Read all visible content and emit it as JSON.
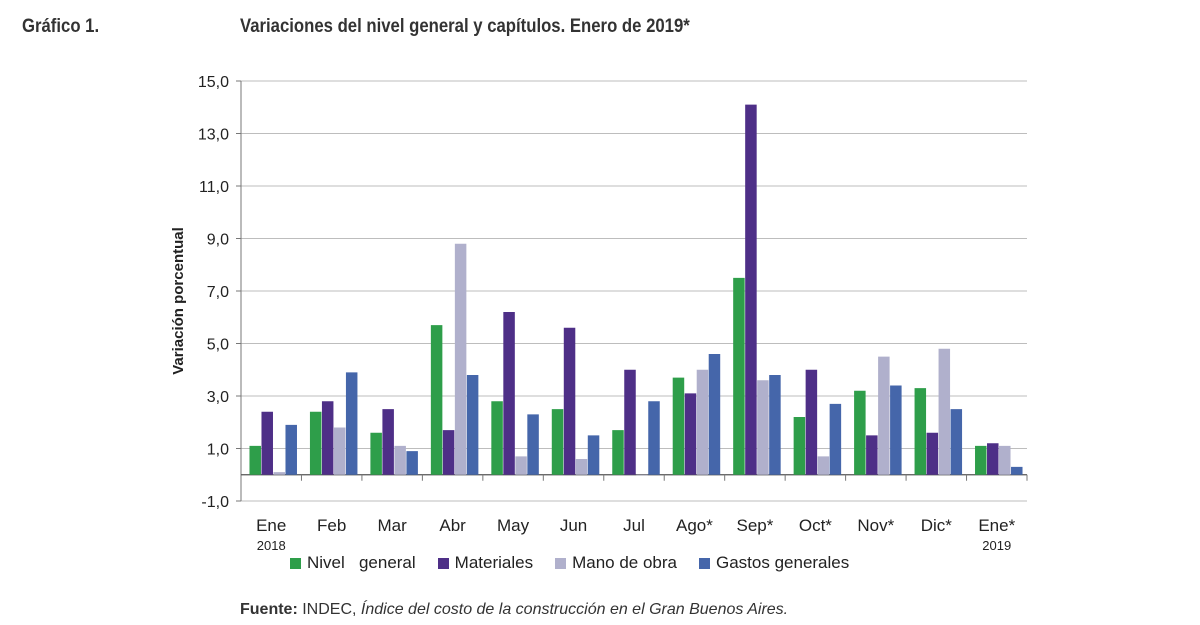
{
  "header": {
    "figure_label": "Gráfico 1.",
    "title": "Variaciones del nivel general y capítulos. Enero de 2019*"
  },
  "chart_data": {
    "type": "bar",
    "title": "Variaciones del nivel general y capítulos. Enero de 2019*",
    "xlabel": "",
    "ylabel": "Variación porcentual",
    "ylim": [
      -1.0,
      15.0
    ],
    "yticks": [
      "-1,0",
      "1,0",
      "3,0",
      "5,0",
      "7,0",
      "9,0",
      "11,0",
      "13,0",
      "15,0"
    ],
    "grid": true,
    "legend_position": "bottom",
    "categories": [
      "Ene",
      "Feb",
      "Mar",
      "Abr",
      "May",
      "Jun",
      "Jul",
      "Ago*",
      "Sep*",
      "Oct*",
      "Nov*",
      "Dic*",
      "Ene*"
    ],
    "category_sublabels": [
      "2018",
      "",
      "",
      "",
      "",
      "",
      "",
      "",
      "",
      "",
      "",
      "",
      "2019"
    ],
    "series": [
      {
        "name": "Nivel   general",
        "color": "#2e9e4a",
        "values": [
          1.1,
          2.4,
          1.6,
          5.7,
          2.8,
          2.5,
          1.7,
          3.7,
          7.5,
          2.2,
          3.2,
          3.3,
          1.1
        ]
      },
      {
        "name": "Materiales",
        "color": "#4e2f87",
        "values": [
          2.4,
          2.8,
          2.5,
          1.7,
          6.2,
          5.6,
          4.0,
          3.1,
          14.1,
          4.0,
          1.5,
          1.6,
          1.2
        ]
      },
      {
        "name": "Mano de obra",
        "color": "#b0b0cc",
        "values": [
          0.1,
          1.8,
          1.1,
          8.8,
          0.7,
          0.6,
          0.0,
          4.0,
          3.6,
          0.7,
          4.5,
          4.8,
          1.1
        ]
      },
      {
        "name": "Gastos generales",
        "color": "#4566aa",
        "values": [
          1.9,
          3.9,
          0.9,
          3.8,
          2.3,
          1.5,
          2.8,
          4.6,
          3.8,
          2.7,
          3.4,
          2.5,
          0.3
        ]
      }
    ]
  },
  "source": {
    "label": "Fuente:",
    "org": " INDEC, ",
    "title": "Índice del costo de la construcción en el Gran Buenos Aires."
  }
}
